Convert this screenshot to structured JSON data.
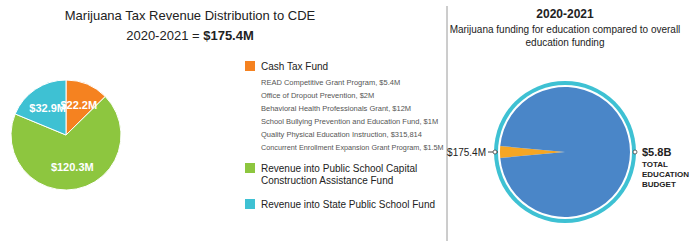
{
  "chart_data": [
    {
      "type": "pie",
      "title": "Marijuana Tax Revenue Distribution to CDE",
      "subtitle": "2020-2021 = $175.4M",
      "categories": [
        "Cash Tax Fund",
        "Revenue into Public School Capital Construction Assistance Fund",
        "Revenue into State Public School Fund"
      ],
      "values": [
        22.2,
        120.3,
        32.9
      ],
      "value_labels": [
        "$22.2M",
        "$120.3M",
        "$32.9M"
      ],
      "colors": [
        "#f58220",
        "#8dc63f",
        "#3ec1d3"
      ],
      "data_labels": true,
      "legend": "right",
      "annotations": [
        "READ Competitive Grant Program, $5.4M",
        "Office of Dropout Prevention, $2M",
        "Behavioral Health Professionals Grant, $12M",
        "School Bullying Prevention and Education Fund, $1M",
        "Quality Physical Education Instruction, $315,814",
        "Concurrent Enrollment Expansion Grant Program, $1.5M"
      ]
    },
    {
      "type": "pie",
      "title": "2020-2021",
      "subtitle": "Marijuana funding for education compared to overall education funding",
      "categories": [
        null,
        "TOTAL EDUCATION BUDGET"
      ],
      "values": [
        175.4,
        5800
      ],
      "value_labels": [
        "$175.4M",
        "$5.8B"
      ],
      "colors": [
        "#f5a623",
        "#4a86c8"
      ],
      "data_labels": true
    }
  ]
}
